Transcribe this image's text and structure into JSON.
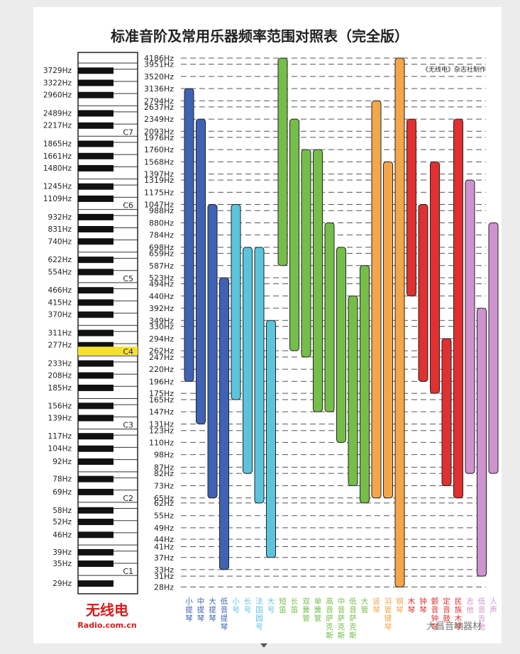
{
  "chart_data": {
    "type": "bar",
    "title": "标准音阶及常用乐器频率范围对照表（完全版）",
    "credit": "《无线电》杂志社制作",
    "logo": {
      "text": "无线电",
      "url": "Radio.com.cn"
    },
    "watermark": "大昌音响器材",
    "freq_ticks": [
      "4186Hz",
      "3951Hz",
      "3520Hz",
      "3136Hz",
      "2794Hz",
      "2637Hz",
      "2349Hz",
      "2093Hz",
      "1976Hz",
      "1760Hz",
      "1568Hz",
      "1397Hz",
      "1319Hz",
      "1175Hz",
      "1047Hz",
      "988Hz",
      "880Hz",
      "784Hz",
      "698Hz",
      "659Hz",
      "587Hz",
      "523Hz",
      "494Hz",
      "440Hz",
      "392Hz",
      "349Hz",
      "330Hz",
      "294Hz",
      "262Hz",
      "247Hz",
      "220Hz",
      "196Hz",
      "175Hz",
      "165Hz",
      "147Hz",
      "131Hz",
      "123Hz",
      "110Hz",
      "98Hz",
      "87Hz",
      "82Hz",
      "73Hz",
      "65Hz",
      "62Hz",
      "55Hz",
      "49Hz",
      "44Hz",
      "41Hz",
      "37Hz",
      "33Hz",
      "31Hz",
      "28Hz"
    ],
    "black_key_labels": [
      "3729Hz",
      "3322Hz",
      "2960Hz",
      "2489Hz",
      "2217Hz",
      "1865Hz",
      "1661Hz",
      "1480Hz",
      "1245Hz",
      "1109Hz",
      "932Hz",
      "831Hz",
      "740Hz",
      "622Hz",
      "554Hz",
      "466Hz",
      "415Hz",
      "370Hz",
      "311Hz",
      "277Hz",
      "233Hz",
      "208Hz",
      "185Hz",
      "156Hz",
      "139Hz",
      "117Hz",
      "104Hz",
      "92Hz",
      "78Hz",
      "69Hz",
      "58Hz",
      "52Hz",
      "46Hz",
      "39Hz",
      "35Hz",
      "29Hz"
    ],
    "octave_markers": [
      "C7",
      "C6",
      "C5",
      "C4",
      "C3",
      "C2",
      "C1"
    ],
    "highlight_marker": "C4",
    "highlight_color": "#f6e133",
    "series": [
      {
        "name": "小提琴",
        "low": "196Hz",
        "high": "3136Hz",
        "color": "#3f62b5"
      },
      {
        "name": "中提琴",
        "low": "131Hz",
        "high": "2349Hz",
        "color": "#3f62b5"
      },
      {
        "name": "大提琴",
        "low": "65Hz",
        "high": "1047Hz",
        "color": "#3f62b5"
      },
      {
        "name": "低音提琴",
        "low": "33Hz",
        "high": "523Hz",
        "color": "#3f62b5"
      },
      {
        "name": "小号",
        "low": "165Hz",
        "high": "1047Hz",
        "color": "#5bc4dd"
      },
      {
        "name": "长号",
        "low": "82Hz",
        "high": "698Hz",
        "color": "#5bc4dd"
      },
      {
        "name": "法国圆号",
        "low": "62Hz",
        "high": "698Hz",
        "color": "#5bc4dd"
      },
      {
        "name": "大号",
        "low": "37Hz",
        "high": "349Hz",
        "color": "#5bc4dd"
      },
      {
        "name": "短笛",
        "low": "587Hz",
        "high": "4186Hz",
        "color": "#76be4a"
      },
      {
        "name": "长笛",
        "low": "262Hz",
        "high": "2349Hz",
        "color": "#76be4a"
      },
      {
        "name": "双簧管",
        "low": "247Hz",
        "high": "1760Hz",
        "color": "#76be4a"
      },
      {
        "name": "单簧管",
        "low": "147Hz",
        "high": "1760Hz",
        "color": "#76be4a"
      },
      {
        "name": "高音萨克斯",
        "low": "147Hz",
        "high": "880Hz",
        "color": "#76be4a"
      },
      {
        "name": "中音萨克斯",
        "low": "110Hz",
        "high": "698Hz",
        "color": "#76be4a"
      },
      {
        "name": "低音萨克斯",
        "low": "73Hz",
        "high": "440Hz",
        "color": "#76be4a"
      },
      {
        "name": "大管",
        "low": "62Hz",
        "high": "587Hz",
        "color": "#76be4a"
      },
      {
        "name": "竖琴",
        "low": "65Hz",
        "high": "2794Hz",
        "color": "#f4a64a"
      },
      {
        "name": "羽管键琴",
        "low": "65Hz",
        "high": "1568Hz",
        "color": "#f4a64a"
      },
      {
        "name": "钢琴",
        "low": "28Hz",
        "high": "4186Hz",
        "color": "#f4a64a"
      },
      {
        "name": "木琴",
        "low": "440Hz",
        "high": "2349Hz",
        "color": "#e03030"
      },
      {
        "name": "钟琴",
        "low": "196Hz",
        "high": "1047Hz",
        "color": "#e03030"
      },
      {
        "name": "颤音钟琴",
        "low": "175Hz",
        "high": "1568Hz",
        "color": "#e03030"
      },
      {
        "name": "定音鼓",
        "low": "73Hz",
        "high": "294Hz",
        "color": "#e03030"
      },
      {
        "name": "民族木琴",
        "low": "65Hz",
        "high": "2349Hz",
        "color": "#e03030"
      },
      {
        "name": "吉他",
        "low": "82Hz",
        "high": "1319Hz",
        "color": "#cf93cf"
      },
      {
        "name": "低音吉他",
        "low": "31Hz",
        "high": "392Hz",
        "color": "#cf93cf"
      },
      {
        "name": "人声",
        "low": "82Hz",
        "high": "880Hz",
        "color": "#cf93cf"
      }
    ]
  }
}
